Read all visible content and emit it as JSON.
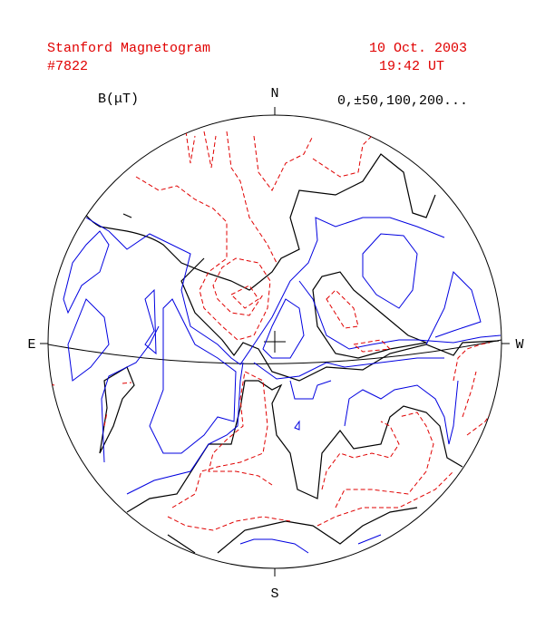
{
  "header": {
    "title": "Stanford Magnetogram",
    "number": "#7822",
    "date": "10 Oct. 2003",
    "time": "19:42 UT"
  },
  "legend": {
    "unit": "B(μT)",
    "levels": "0,±50,100,200..."
  },
  "compass": {
    "north": "N",
    "south": "S",
    "east": "E",
    "west": "W"
  }
}
